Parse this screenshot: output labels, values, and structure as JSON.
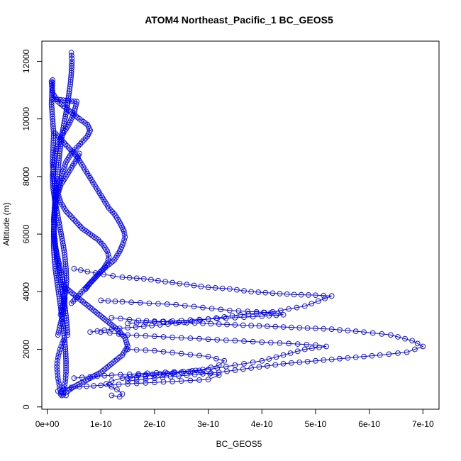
{
  "chart_data": {
    "type": "scatter",
    "title": "ATOM4 Northeast_Pacific_1 BC_GEOS5",
    "xlabel": "BC_GEOS5",
    "ylabel": "Altitude (m)",
    "xlim": [
      -1e-11,
      7.3e-10
    ],
    "ylim": [
      -80,
      12700
    ],
    "x_ticks": [
      {
        "value": 0,
        "label": "0e+00"
      },
      {
        "value": 1e-10,
        "label": "1e-10"
      },
      {
        "value": 2e-10,
        "label": "2e-10"
      },
      {
        "value": 3e-10,
        "label": "3e-10"
      },
      {
        "value": 4e-10,
        "label": "4e-10"
      },
      {
        "value": 5e-10,
        "label": "5e-10"
      },
      {
        "value": 6e-10,
        "label": "6e-10"
      },
      {
        "value": 7e-10,
        "label": "7e-10"
      }
    ],
    "y_ticks": [
      {
        "value": 0,
        "label": "0"
      },
      {
        "value": 2000,
        "label": "2000"
      },
      {
        "value": 4000,
        "label": "4000"
      },
      {
        "value": 6000,
        "label": "6000"
      },
      {
        "value": 8000,
        "label": "8000"
      },
      {
        "value": 10000,
        "label": "10000"
      },
      {
        "value": 12000,
        "label": "12000"
      }
    ],
    "marker": "open-circle",
    "connected": true,
    "color": "#0000ff",
    "series": [
      {
        "x": [
          4.5e-11,
          4.6e-11,
          4.5e-11,
          4.3e-11,
          4e-11,
          3.7e-11,
          3.3e-11,
          2.9e-11,
          2.6e-11,
          2.3e-11,
          2.1e-11,
          1.9e-11,
          1.7e-11,
          1.5e-11,
          1.4e-11,
          1.3e-11,
          1.2e-11,
          1.2e-11,
          1.3e-11,
          1.5e-11,
          1.8e-11,
          2.1e-11,
          2.4e-11,
          2.7e-11,
          3e-11,
          3.2e-11,
          3.4e-11,
          3.5e-11,
          3.5e-11,
          3.4e-11,
          3.2e-11,
          3e-11,
          2.7e-11,
          2.4e-11,
          2.2e-11,
          2e-11,
          1.9e-11,
          1.8e-11,
          1.9e-11,
          2.1e-11,
          2.4e-11,
          2.8e-11,
          3.2e-11
        ],
        "y": [
          12300,
          12000,
          11600,
          11200,
          10800,
          10400,
          10000,
          9600,
          9200,
          8800,
          8400,
          8000,
          7600,
          7200,
          6800,
          6400,
          6000,
          5600,
          5200,
          4800,
          4400,
          4000,
          3600,
          3200,
          2800,
          2400,
          2000,
          1600,
          1200,
          900,
          700,
          500,
          400,
          600,
          800,
          1000,
          1200,
          1400,
          1600,
          1800,
          2000,
          2200,
          2400
        ]
      },
      {
        "x": [
          8e-12,
          1e-11,
          2e-11,
          4e-11,
          6e-11,
          7.5e-11,
          8e-11,
          7.5e-11,
          6.5e-11,
          5.5e-11,
          4.5e-11,
          3.5e-11,
          2.8e-11,
          2.2e-11,
          1.8e-11,
          1.5e-11,
          1.3e-11,
          1.2e-11,
          1.4e-11,
          1.8e-11,
          2.3e-11,
          2.8e-11,
          3.2e-11,
          3.3e-11,
          3e-11,
          2.5e-11,
          2e-11
        ],
        "y": [
          11300,
          10900,
          10600,
          10300,
          10000,
          9800,
          9600,
          9400,
          9200,
          9000,
          8800,
          8500,
          8100,
          7700,
          7300,
          6900,
          6500,
          6100,
          5700,
          5300,
          4900,
          4500,
          4100,
          3700,
          3300,
          2900,
          2500
        ]
      },
      {
        "x": [
          1e-11,
          3e-11,
          5.5e-11,
          5e-11,
          4e-11,
          3e-11,
          2e-11,
          1.5e-11,
          1.2e-11,
          1e-11,
          1.1e-11,
          1.4e-11,
          1.8e-11,
          2.2e-11,
          2.6e-11,
          3e-11,
          3.3e-11,
          3.5e-11,
          3.6e-11,
          3.4e-11,
          3e-11,
          2.5e-11
        ],
        "y": [
          10700,
          10650,
          10600,
          10200,
          9800,
          9500,
          9200,
          8800,
          8400,
          8000,
          7600,
          7200,
          6800,
          6400,
          6000,
          5600,
          5200,
          4800,
          4400,
          4000,
          3600,
          3200
        ]
      },
      {
        "x": [
          1.5e-11,
          2.5e-11,
          4e-11,
          5.5e-11,
          6.5e-11,
          7.5e-11,
          8.5e-11,
          9.5e-11,
          1.05e-10,
          1.15e-10,
          1.25e-10,
          1.32e-10,
          1.38e-10,
          1.43e-10,
          1.45e-10,
          1.42e-10,
          1.35e-10,
          1.25e-10,
          1.12e-10,
          1e-10,
          9e-11,
          8e-11,
          7.2e-11
        ],
        "y": [
          9500,
          9300,
          9000,
          8700,
          8400,
          8100,
          7800,
          7500,
          7200,
          6900,
          6700,
          6500,
          6300,
          6100,
          5900,
          5700,
          5400,
          5100,
          4900,
          4700,
          4500,
          4300,
          4100
        ]
      },
      {
        "x": [
          6e-11,
          5.5e-11,
          4.5e-11,
          3.5e-11,
          2.5e-11,
          2e-11,
          2.5e-11,
          3.5e-11,
          5e-11,
          6.5e-11,
          8e-11,
          9.5e-11,
          1.05e-10,
          1.12e-10,
          1.15e-10,
          1.12e-10,
          1.05e-10,
          9.5e-11,
          8.5e-11,
          7.5e-11,
          6.5e-11,
          5.5e-11,
          4.5e-11
        ],
        "y": [
          8800,
          8600,
          8300,
          8000,
          7700,
          7400,
          7100,
          6800,
          6500,
          6200,
          6000,
          5800,
          5600,
          5400,
          5200,
          5000,
          4800,
          4600,
          4400,
          4200,
          4000,
          3800,
          3600
        ]
      },
      {
        "x": [
          1e-11,
          9e-12,
          8e-12,
          1e-11,
          1.2e-11,
          1.1e-11,
          1e-11,
          1.2e-11,
          1.5e-11,
          1.4e-11,
          1.2e-11,
          1.3e-11,
          1.6e-11,
          2e-11,
          2.4e-11,
          2.8e-11,
          3.3e-11,
          3.6e-11,
          3.8e-11
        ],
        "y": [
          11350,
          11000,
          10500,
          10000,
          9500,
          9000,
          8500,
          8000,
          7500,
          7000,
          6500,
          6000,
          5500,
          5000,
          4500,
          4000,
          3500,
          3000,
          2500
        ]
      },
      {
        "x": [
          5e-11,
          7.5e-11,
          1.05e-10,
          1.4e-10,
          1.8e-10,
          2.2e-10,
          2.6e-10,
          3e-10,
          3.4e-10,
          3.8e-10,
          4.2e-10,
          4.6e-10,
          5e-10,
          5.3e-10,
          4.8e-10,
          4.2e-10,
          3.6e-10,
          3e-10,
          2.4e-10,
          1.8e-10,
          1.2e-10,
          8e-11
        ],
        "y": [
          4800,
          4700,
          4600,
          4500,
          4450,
          4350,
          4250,
          4150,
          4100,
          4000,
          3950,
          3900,
          3880,
          3850,
          3500,
          3300,
          3200,
          3050,
          2900,
          2800,
          2700,
          2600
        ]
      },
      {
        "x": [
          1e-10,
          1.4e-10,
          1.9e-10,
          2.4e-10,
          2.9e-10,
          3.4e-10,
          3.9e-10,
          4.3e-10,
          4.4e-10,
          4e-10,
          3.5e-10,
          3e-10,
          2.5e-10,
          2e-10,
          1.5e-10
        ],
        "y": [
          3700,
          3650,
          3600,
          3550,
          3450,
          3350,
          3300,
          3250,
          3200,
          3150,
          3100,
          3050,
          3000,
          2950,
          2900
        ]
      },
      {
        "x": [
          1.2e-10,
          1.7e-10,
          2.3e-10,
          2.9e-10,
          3.5e-10,
          4.1e-10,
          4.7e-10,
          5.3e-10,
          5.9e-10,
          6.4e-10,
          6.8e-10,
          7e-10,
          6.7e-10,
          6.2e-10,
          5.6e-10,
          5e-10,
          4.4e-10,
          3.8e-10,
          3.2e-10,
          2.6e-10,
          2e-10,
          1.5e-10
        ],
        "y": [
          3100,
          3000,
          2950,
          2900,
          2850,
          2800,
          2750,
          2700,
          2600,
          2500,
          2300,
          2100,
          1900,
          1800,
          1700,
          1600,
          1500,
          1350,
          1200,
          1100,
          1000,
          900
        ]
      },
      {
        "x": [
          1e-10,
          1.5e-10,
          2e-10,
          2.5e-10,
          3e-10,
          3.5e-10,
          4e-10,
          4.5e-10,
          5e-10,
          5.2e-10,
          4.8e-10,
          4.4e-10,
          4e-10,
          3.5e-10,
          3e-10,
          2.5e-10,
          2e-10,
          1.5e-10
        ],
        "y": [
          2600,
          2500,
          2450,
          2400,
          2350,
          2300,
          2250,
          2200,
          2150,
          2100,
          2000,
          1800,
          1600,
          1450,
          1300,
          1200,
          1100,
          1000
        ]
      },
      {
        "x": [
          1.5e-10,
          2e-10,
          2.5e-10,
          3e-10,
          3.3e-10,
          3.2e-10,
          2.9e-10,
          2.5e-10,
          2.1e-10,
          1.7e-10,
          1.4e-10,
          1.2e-10,
          1.1e-10,
          1.2e-10,
          1.3e-10,
          1.4e-10,
          1.35e-10,
          1.2e-10
        ],
        "y": [
          2000,
          1950,
          1850,
          1750,
          1600,
          1450,
          1300,
          1200,
          1150,
          1100,
          1000,
          900,
          800,
          700,
          600,
          450,
          350,
          400
        ]
      },
      {
        "x": [
          5e-11,
          8e-11,
          1.2e-10,
          1.7e-10,
          2.2e-10,
          2.7e-10,
          3.2e-10,
          3e-10,
          2.5e-10,
          2e-10,
          1.5e-10,
          1e-10,
          6e-11,
          3e-11,
          2e-11,
          2.5e-11,
          3.5e-11
        ],
        "y": [
          1000,
          1050,
          1100,
          1150,
          1200,
          1250,
          1100,
          950,
          900,
          850,
          800,
          750,
          700,
          650,
          550,
          450,
          400
        ]
      },
      {
        "x": [
          3e-11,
          5e-11,
          7e-11,
          9e-11,
          1.1e-10,
          1.3e-10,
          1.45e-10,
          1.5e-10,
          1.4e-10,
          1.2e-10,
          1e-10,
          8e-11,
          6e-11,
          4.5e-11,
          3.5e-11,
          3e-11
        ],
        "y": [
          4200,
          3900,
          3600,
          3300,
          3000,
          2700,
          2400,
          2100,
          1800,
          1500,
          1200,
          1000,
          800,
          650,
          500,
          420
        ]
      }
    ]
  }
}
